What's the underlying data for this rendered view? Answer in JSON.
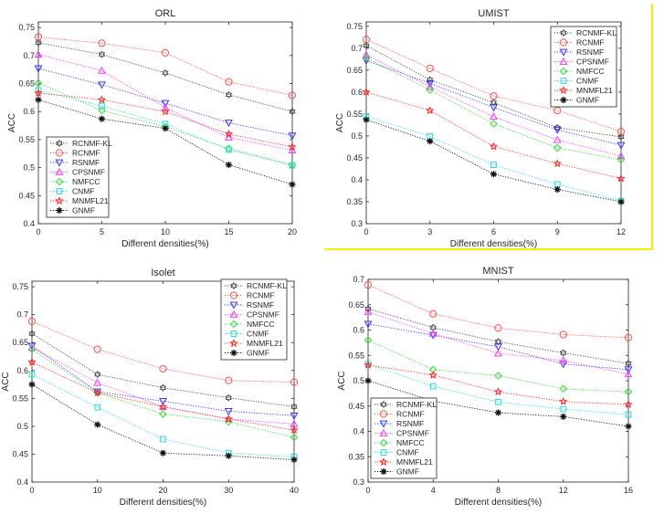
{
  "figure": {
    "highlighted_panel": "UMIST",
    "highlight_color": "#f5f000"
  },
  "series_styles": [
    {
      "name": "RCNMF-KL",
      "color": "#444444",
      "marker": "hexagram"
    },
    {
      "name": "RCNMF",
      "color": "#ff4d4d",
      "marker": "circle"
    },
    {
      "name": "RSNMF",
      "color": "#3333ff",
      "marker": "triangle-down"
    },
    {
      "name": "CPSNMF",
      "color": "#ff33ff",
      "marker": "triangle-up"
    },
    {
      "name": "NMFCC",
      "color": "#33dd33",
      "marker": "diamond"
    },
    {
      "name": "CNMF",
      "color": "#22dddd",
      "marker": "square"
    },
    {
      "name": "MNMFL21",
      "color": "#ff2222",
      "marker": "pentagram"
    },
    {
      "name": "GNMF",
      "color": "#111111",
      "marker": "star"
    }
  ],
  "chart_data": [
    {
      "type": "line",
      "title": "ORL",
      "xlabel": "Different densities(%)",
      "ylabel": "ACC",
      "x": [
        0,
        5,
        10,
        15,
        20
      ],
      "xticks": [
        "0",
        "5",
        "10",
        "15",
        "20"
      ],
      "xlim": [
        0,
        20
      ],
      "ylim": [
        0.4,
        0.76
      ],
      "yticks": [
        "0.4",
        "0.45",
        "0.5",
        "0.55",
        "0.6",
        "0.65",
        "0.7",
        "0.75"
      ],
      "grid": false,
      "legend_position": "bottom-left",
      "series": [
        {
          "name": "RCNMF-KL",
          "values": [
            0.723,
            0.702,
            0.669,
            0.63,
            0.6
          ]
        },
        {
          "name": "RCNMF",
          "values": [
            0.733,
            0.722,
            0.705,
            0.653,
            0.629
          ]
        },
        {
          "name": "RSNMF",
          "values": [
            0.677,
            0.648,
            0.615,
            0.58,
            0.557
          ]
        },
        {
          "name": "CPSNMF",
          "values": [
            0.702,
            0.673,
            0.607,
            0.554,
            0.531
          ]
        },
        {
          "name": "NMFCC",
          "values": [
            0.651,
            0.602,
            0.573,
            0.534,
            0.505
          ]
        },
        {
          "name": "CNMF",
          "values": [
            0.638,
            0.61,
            0.578,
            0.532,
            0.504
          ]
        },
        {
          "name": "MNMFL21",
          "values": [
            0.633,
            0.621,
            0.6,
            0.56,
            0.537
          ]
        },
        {
          "name": "GNMF",
          "values": [
            0.621,
            0.587,
            0.57,
            0.505,
            0.47
          ]
        }
      ]
    },
    {
      "type": "line",
      "title": "UMIST",
      "xlabel": "Different densities(%)",
      "ylabel": "ACC",
      "x": [
        0,
        3,
        6,
        9,
        12
      ],
      "xticks": [
        "0",
        "3",
        "6",
        "9",
        "12"
      ],
      "xlim": [
        0,
        12
      ],
      "ylim": [
        0.3,
        0.76
      ],
      "yticks": [
        "0.3",
        "0.35",
        "0.4",
        "0.45",
        "0.5",
        "0.55",
        "0.6",
        "0.65",
        "0.7",
        "0.75"
      ],
      "grid": false,
      "legend_position": "top-right",
      "series": [
        {
          "name": "RCNMF-KL",
          "values": [
            0.706,
            0.628,
            0.576,
            0.519,
            0.498
          ]
        },
        {
          "name": "RCNMF",
          "values": [
            0.72,
            0.654,
            0.591,
            0.558,
            0.51
          ]
        },
        {
          "name": "RSNMF",
          "values": [
            0.672,
            0.62,
            0.565,
            0.514,
            0.479
          ]
        },
        {
          "name": "CPSNMF",
          "values": [
            0.685,
            0.612,
            0.544,
            0.491,
            0.454
          ]
        },
        {
          "name": "NMFCC",
          "values": [
            0.678,
            0.605,
            0.528,
            0.473,
            0.446
          ]
        },
        {
          "name": "CNMF",
          "values": [
            0.545,
            0.499,
            0.434,
            0.39,
            0.352
          ]
        },
        {
          "name": "MNMFL21",
          "values": [
            0.6,
            0.558,
            0.476,
            0.437,
            0.403
          ]
        },
        {
          "name": "GNMF",
          "values": [
            0.537,
            0.488,
            0.413,
            0.378,
            0.35
          ]
        }
      ]
    },
    {
      "type": "line",
      "title": "Isolet",
      "xlabel": "Different densities(%)",
      "ylabel": "ACC",
      "x": [
        0,
        10,
        20,
        30,
        40
      ],
      "xticks": [
        "0",
        "10",
        "20",
        "30",
        "40"
      ],
      "xlim": [
        0,
        40
      ],
      "ylim": [
        0.4,
        0.76
      ],
      "yticks": [
        "0.4",
        "0.45",
        "0.5",
        "0.55",
        "0.6",
        "0.65",
        "0.7",
        "0.75"
      ],
      "grid": false,
      "legend_position": "top-right",
      "series": [
        {
          "name": "RCNMF-KL",
          "values": [
            0.666,
            0.593,
            0.569,
            0.551,
            0.535
          ]
        },
        {
          "name": "RCNMF",
          "values": [
            0.688,
            0.638,
            0.603,
            0.582,
            0.579
          ]
        },
        {
          "name": "RSNMF",
          "values": [
            0.644,
            0.562,
            0.545,
            0.527,
            0.519
          ]
        },
        {
          "name": "CPSNMF",
          "values": [
            0.641,
            0.578,
            0.535,
            0.513,
            0.504
          ]
        },
        {
          "name": "NMFCC",
          "values": [
            0.638,
            0.56,
            0.522,
            0.508,
            0.48
          ]
        },
        {
          "name": "CNMF",
          "values": [
            0.593,
            0.534,
            0.477,
            0.452,
            0.445
          ]
        },
        {
          "name": "MNMFL21",
          "values": [
            0.615,
            0.56,
            0.535,
            0.513,
            0.493
          ]
        },
        {
          "name": "GNMF",
          "values": [
            0.575,
            0.503,
            0.452,
            0.447,
            0.44
          ]
        }
      ]
    },
    {
      "type": "line",
      "title": "MNIST",
      "xlabel": "Different densities(%)",
      "ylabel": "ACC",
      "x": [
        0,
        4,
        8,
        12,
        16
      ],
      "xticks": [
        "0",
        "4",
        "8",
        "12",
        "16"
      ],
      "xlim": [
        0,
        16
      ],
      "ylim": [
        0.3,
        0.7
      ],
      "yticks": [
        "0.3",
        "0.35",
        "0.4",
        "0.45",
        "0.5",
        "0.55",
        "0.6",
        "0.65",
        "0.7"
      ],
      "grid": false,
      "legend_position": "bottom-left",
      "series": [
        {
          "name": "RCNMF-KL",
          "values": [
            0.642,
            0.605,
            0.577,
            0.555,
            0.534
          ]
        },
        {
          "name": "RCNMF",
          "values": [
            0.689,
            0.632,
            0.604,
            0.591,
            0.585
          ]
        },
        {
          "name": "RSNMF",
          "values": [
            0.612,
            0.59,
            0.567,
            0.533,
            0.522
          ]
        },
        {
          "name": "CPSNMF",
          "values": [
            0.636,
            0.593,
            0.554,
            0.54,
            0.513
          ]
        },
        {
          "name": "NMFCC",
          "values": [
            0.58,
            0.522,
            0.51,
            0.484,
            0.478
          ]
        },
        {
          "name": "CNMF",
          "values": [
            0.533,
            0.489,
            0.458,
            0.444,
            0.433
          ]
        },
        {
          "name": "MNMFL21",
          "values": [
            0.531,
            0.511,
            0.478,
            0.459,
            0.453
          ]
        },
        {
          "name": "GNMF",
          "values": [
            0.5,
            0.46,
            0.437,
            0.429,
            0.41
          ]
        }
      ]
    }
  ]
}
